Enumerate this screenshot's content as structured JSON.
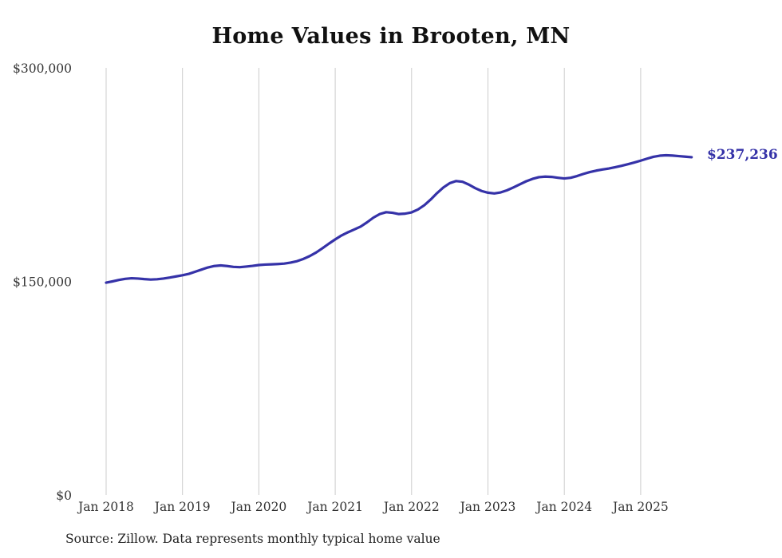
{
  "title": "Home Values in Brooten, MN",
  "source_note": "Source: Zillow. Data represents monthly typical home value",
  "end_label": "$237,236",
  "colors": {
    "line": "#3532a8",
    "gridline": "#cccccc",
    "tick_text": "#333333",
    "title_text": "#111111",
    "source_text": "#222222"
  },
  "chart_data": {
    "type": "line",
    "title": "Home Values in Brooten, MN",
    "x_start": "2018-01",
    "x_end": "2025-09",
    "x_tick_labels": [
      "Jan 2018",
      "Jan 2019",
      "Jan 2020",
      "Jan 2021",
      "Jan 2022",
      "Jan 2023",
      "Jan 2024",
      "Jan 2025"
    ],
    "y_ticks": [
      0,
      150000,
      300000
    ],
    "y_tick_labels": [
      "$0",
      "$150,000",
      "$300,000"
    ],
    "ylim": [
      0,
      300000
    ],
    "grid": "vertical-only",
    "legend": "none",
    "latest_value": 237236,
    "latest_value_label": "$237,236",
    "series": [
      {
        "name": "Monthly typical home value",
        "values": [
          149100,
          150000,
          151000,
          151800,
          152200,
          152000,
          151600,
          151300,
          151500,
          152000,
          152700,
          153500,
          154300,
          155300,
          156800,
          158300,
          159800,
          160800,
          161200,
          160800,
          160200,
          160000,
          160400,
          160900,
          161500,
          161800,
          162000,
          162200,
          162500,
          163200,
          164200,
          165800,
          167800,
          170300,
          173300,
          176500,
          179500,
          182300,
          184500,
          186500,
          188500,
          191500,
          194800,
          197300,
          198600,
          198200,
          197300,
          197600,
          198500,
          200500,
          203500,
          207500,
          212000,
          216000,
          219000,
          220500,
          220000,
          218000,
          215500,
          213500,
          212300,
          211800,
          212500,
          214000,
          216000,
          218200,
          220300,
          222000,
          223200,
          223600,
          223400,
          222800,
          222300,
          222800,
          224000,
          225500,
          226800,
          227800,
          228600,
          229300,
          230200,
          231200,
          232300,
          233500,
          234800,
          236200,
          237500,
          238300,
          238600,
          238400,
          238000,
          237600,
          237236
        ]
      }
    ]
  }
}
